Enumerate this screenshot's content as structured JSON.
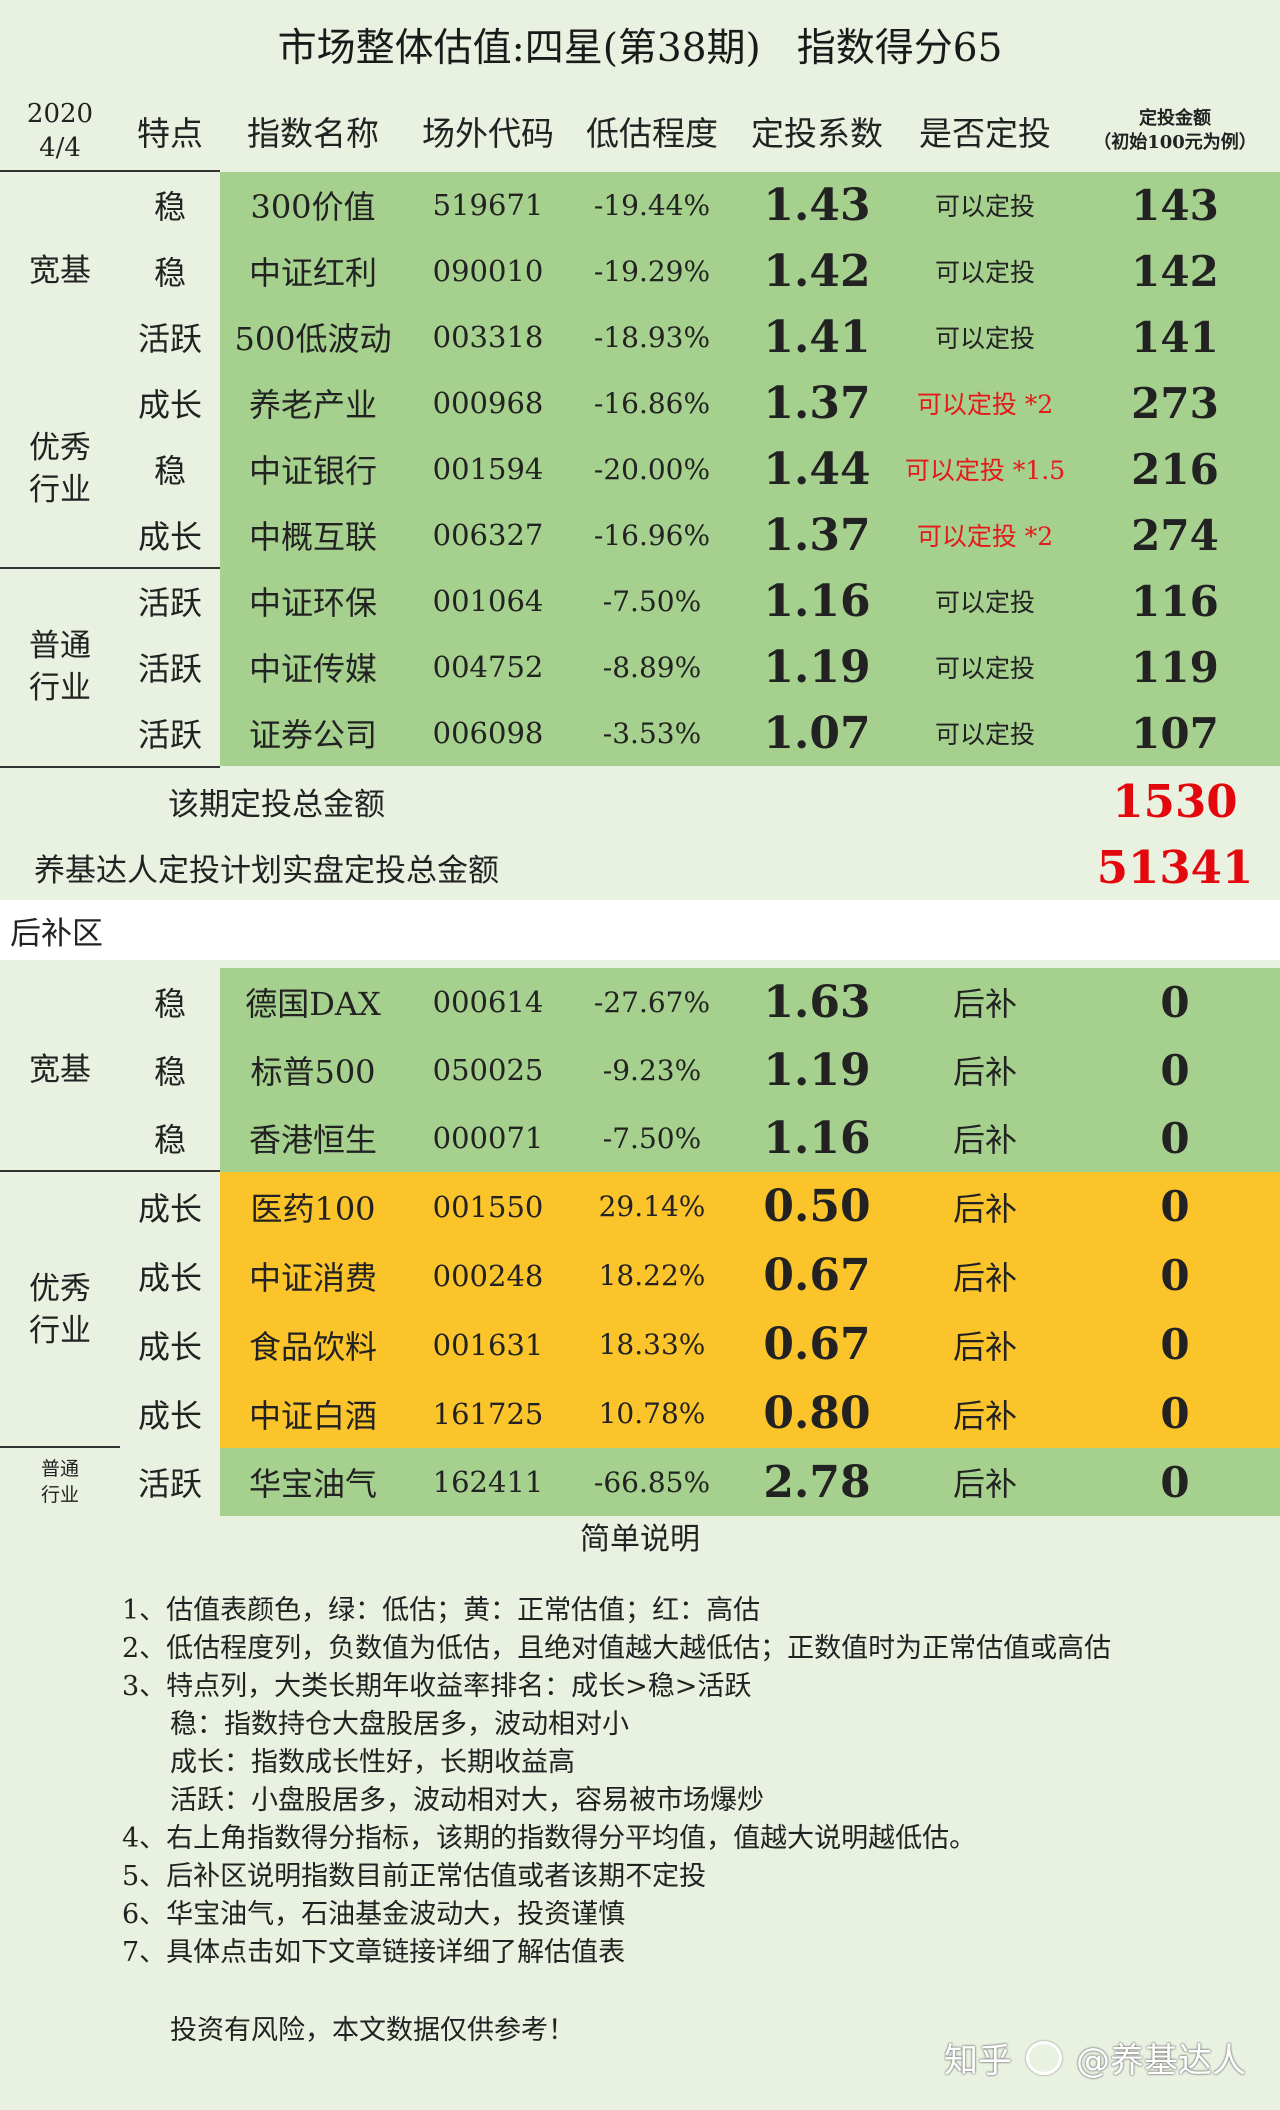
{
  "title": {
    "left": "市场整体估值:四星(第38期)",
    "right": "指数得分65"
  },
  "header": {
    "date_year": "2020",
    "date_day": "4/4",
    "feature": "特点",
    "name": "指数名称",
    "code": "场外代码",
    "undervalue": "低估程度",
    "coef": "定投系数",
    "invest": "是否定投",
    "amount_line1": "定投金额",
    "amount_line2": "（初始100元为例）"
  },
  "groups": {
    "broad": "宽基",
    "excellent_l1": "优秀",
    "excellent_l2": "行业",
    "normal_l1": "普通",
    "normal_l2": "行业"
  },
  "main_rows": [
    {
      "tag": "稳",
      "name": "300价值",
      "code": "519671",
      "pct": "-19.44%",
      "coef": "1.43",
      "invest": "可以定投",
      "amount": "143"
    },
    {
      "tag": "稳",
      "name": "中证红利",
      "code": "090010",
      "pct": "-19.29%",
      "coef": "1.42",
      "invest": "可以定投",
      "amount": "142"
    },
    {
      "tag": "活跃",
      "name": "500低波动",
      "code": "003318",
      "pct": "-18.93%",
      "coef": "1.41",
      "invest": "可以定投",
      "amount": "141"
    },
    {
      "tag": "成长",
      "name": "养老产业",
      "code": "000968",
      "pct": "-16.86%",
      "coef": "1.37",
      "invest": "可以定投 *2",
      "amount": "273"
    },
    {
      "tag": "稳",
      "name": "中证银行",
      "code": "001594",
      "pct": "-20.00%",
      "coef": "1.44",
      "invest": "可以定投 *1.5",
      "amount": "216"
    },
    {
      "tag": "成长",
      "name": "中概互联",
      "code": "006327",
      "pct": "-16.96%",
      "coef": "1.37",
      "invest": "可以定投 *2",
      "amount": "274"
    },
    {
      "tag": "活跃",
      "name": "中证环保",
      "code": "001064",
      "pct": "-7.50%",
      "coef": "1.16",
      "invest": "可以定投",
      "amount": "116"
    },
    {
      "tag": "活跃",
      "name": "中证传媒",
      "code": "004752",
      "pct": "-8.89%",
      "coef": "1.19",
      "invest": "可以定投",
      "amount": "119"
    },
    {
      "tag": "活跃",
      "name": "证券公司",
      "code": "006098",
      "pct": "-3.53%",
      "coef": "1.07",
      "invest": "可以定投",
      "amount": "107"
    }
  ],
  "totals": {
    "period_label": "该期定投总金额",
    "period_value": "1530",
    "plan_label": "养基达人定投计划实盘定投总金额",
    "plan_value": "51341"
  },
  "backup_label": "后补区",
  "backup_rows": [
    {
      "tag": "稳",
      "name": "德国DAX",
      "code": "000614",
      "pct": "-27.67%",
      "coef": "1.63",
      "invest": "后补",
      "amount": "0"
    },
    {
      "tag": "稳",
      "name": "标普500",
      "code": "050025",
      "pct": "-9.23%",
      "coef": "1.19",
      "invest": "后补",
      "amount": "0"
    },
    {
      "tag": "稳",
      "name": "香港恒生",
      "code": "000071",
      "pct": "-7.50%",
      "coef": "1.16",
      "invest": "后补",
      "amount": "0"
    },
    {
      "tag": "成长",
      "name": "医药100",
      "code": "001550",
      "pct": "29.14%",
      "coef": "0.50",
      "invest": "后补",
      "amount": "0"
    },
    {
      "tag": "成长",
      "name": "中证消费",
      "code": "000248",
      "pct": "18.22%",
      "coef": "0.67",
      "invest": "后补",
      "amount": "0"
    },
    {
      "tag": "成长",
      "name": "食品饮料",
      "code": "001631",
      "pct": "18.33%",
      "coef": "0.67",
      "invest": "后补",
      "amount": "0"
    },
    {
      "tag": "成长",
      "name": "中证白酒",
      "code": "161725",
      "pct": "10.78%",
      "coef": "0.80",
      "invest": "后补",
      "amount": "0"
    },
    {
      "tag": "活跃",
      "name": "华宝油气",
      "code": "162411",
      "pct": "-66.85%",
      "coef": "2.78",
      "invest": "后补",
      "amount": "0"
    }
  ],
  "notes": {
    "title": "简单说明",
    "lines": [
      "1、估值表颜色，绿：低估；黄：正常估值；红：高估",
      "2、低估程度列，负数值为低估，且绝对值越大越低估；正数值时为正常估值或高估",
      "3、特点列，大类长期年收益率排名：成长>稳>活跃",
      "稳：指数持仓大盘股居多，波动相对小",
      "成长：指数成长性好，长期收益高",
      "活跃：小盘股居多，波动相对大，容易被市场爆炒",
      "4、右上角指数得分指标，该期的指数得分平均值，值越大说明越低估。",
      "5、后补区说明指数目前正常估值或者该期不定投",
      "6、华宝油气，石油基金波动大，投资谨慎",
      "7、具体点击如下文章链接详细了解估值表",
      "投资有风险，本文数据仅供参考！"
    ],
    "watermark_left": "知乎",
    "watermark_right": "@养基达人"
  },
  "colors": {
    "green_cell": "#a5d08d",
    "amber_cell": "#fbc42a",
    "background": "#e9f2e1",
    "red_text": "#e3080d"
  }
}
